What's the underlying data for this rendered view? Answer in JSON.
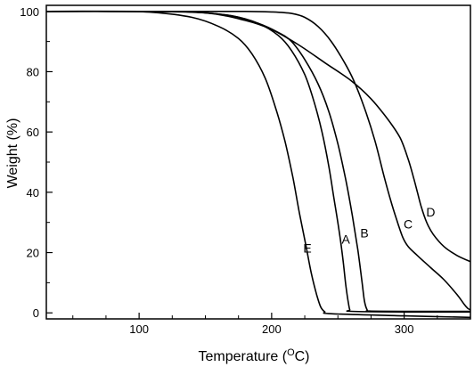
{
  "chart_data": {
    "type": "line",
    "title": "",
    "xlabel": "Temperature (",
    "xlabel_superscript": "O",
    "xlabel_suffix": "C)",
    "ylabel": "Weight (%)",
    "xlim": [
      30,
      350
    ],
    "ylim": [
      -2,
      102
    ],
    "x_ticks": [
      100,
      200,
      300
    ],
    "y_ticks": [
      0,
      20,
      40,
      60,
      80,
      100
    ],
    "x_minor_step": 25,
    "y_minor_step": 10,
    "grid": false,
    "legend": "none",
    "series": [
      {
        "name": "A",
        "label_at": [
          256,
          23
        ],
        "points": [
          [
            30,
            100
          ],
          [
            100,
            100
          ],
          [
            140,
            99.8
          ],
          [
            170,
            98.5
          ],
          [
            190,
            96
          ],
          [
            205,
            92
          ],
          [
            215,
            87
          ],
          [
            225,
            79
          ],
          [
            232,
            70
          ],
          [
            238,
            60
          ],
          [
            243,
            49
          ],
          [
            247,
            38
          ],
          [
            251,
            27
          ],
          [
            254,
            17
          ],
          [
            256,
            9
          ],
          [
            258,
            3
          ],
          [
            259,
            1
          ],
          [
            260,
            0.5
          ],
          [
            300,
            0.3
          ],
          [
            350,
            0.3
          ]
        ]
      },
      {
        "name": "B",
        "label_at": [
          270,
          25
        ],
        "points": [
          [
            30,
            100
          ],
          [
            100,
            100
          ],
          [
            140,
            99.8
          ],
          [
            170,
            98.5
          ],
          [
            190,
            96
          ],
          [
            205,
            93
          ],
          [
            215,
            90
          ],
          [
            225,
            84
          ],
          [
            235,
            76
          ],
          [
            243,
            67
          ],
          [
            250,
            56
          ],
          [
            256,
            44
          ],
          [
            261,
            32
          ],
          [
            265,
            21
          ],
          [
            268,
            11
          ],
          [
            270,
            4
          ],
          [
            272,
            1
          ],
          [
            274,
            0.6
          ],
          [
            300,
            0.5
          ],
          [
            350,
            0.5
          ]
        ]
      },
      {
        "name": "C",
        "label_at": [
          303,
          28
        ],
        "points": [
          [
            30,
            100
          ],
          [
            100,
            100
          ],
          [
            150,
            100
          ],
          [
            180,
            100
          ],
          [
            200,
            99.8
          ],
          [
            215,
            99.3
          ],
          [
            225,
            98
          ],
          [
            235,
            95
          ],
          [
            245,
            90
          ],
          [
            255,
            83
          ],
          [
            262,
            77
          ],
          [
            270,
            68
          ],
          [
            278,
            57
          ],
          [
            285,
            45
          ],
          [
            290,
            37
          ],
          [
            295,
            30
          ],
          [
            299,
            25
          ],
          [
            303,
            22
          ],
          [
            310,
            19
          ],
          [
            320,
            15
          ],
          [
            330,
            11
          ],
          [
            340,
            6
          ],
          [
            345,
            3
          ],
          [
            348,
            1.5
          ],
          [
            350,
            1
          ]
        ]
      },
      {
        "name": "D",
        "label_at": [
          320,
          32
        ],
        "points": [
          [
            30,
            100
          ],
          [
            100,
            100
          ],
          [
            150,
            99.5
          ],
          [
            180,
            97
          ],
          [
            200,
            94
          ],
          [
            220,
            89
          ],
          [
            240,
            83
          ],
          [
            260,
            77
          ],
          [
            275,
            71
          ],
          [
            288,
            64
          ],
          [
            297,
            58
          ],
          [
            303,
            51
          ],
          [
            307,
            45
          ],
          [
            310,
            40
          ],
          [
            313,
            35
          ],
          [
            317,
            30
          ],
          [
            322,
            26
          ],
          [
            330,
            22
          ],
          [
            340,
            19
          ],
          [
            350,
            17
          ]
        ]
      },
      {
        "name": "E",
        "label_at": [
          227,
          20
        ],
        "points": [
          [
            30,
            100
          ],
          [
            80,
            100
          ],
          [
            110,
            99.7
          ],
          [
            140,
            98
          ],
          [
            160,
            95
          ],
          [
            175,
            91
          ],
          [
            185,
            86
          ],
          [
            195,
            78
          ],
          [
            203,
            68
          ],
          [
            210,
            57
          ],
          [
            216,
            45
          ],
          [
            221,
            33
          ],
          [
            226,
            22
          ],
          [
            230,
            13
          ],
          [
            234,
            6
          ],
          [
            237,
            2
          ],
          [
            240,
            0.4
          ],
          [
            245,
            -0.3
          ],
          [
            300,
            -1
          ],
          [
            350,
            -1.5
          ]
        ]
      }
    ]
  }
}
